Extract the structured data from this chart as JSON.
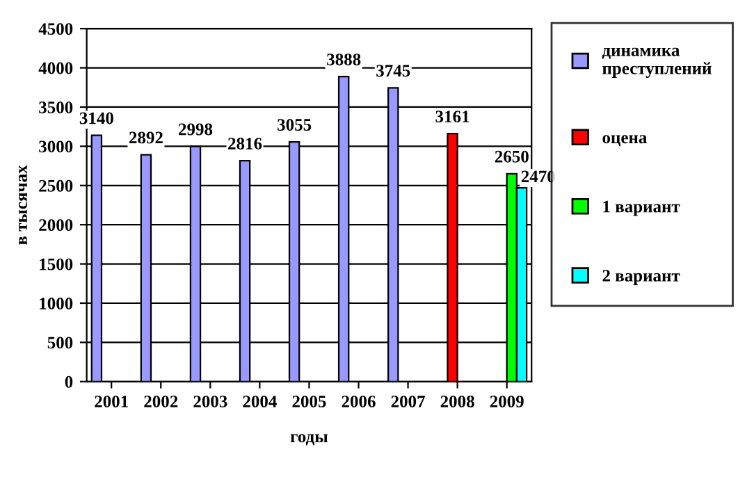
{
  "chart_data": {
    "type": "bar",
    "xlabel": "годы",
    "ylabel": "в тысячах",
    "categories": [
      "2001",
      "2002",
      "2003",
      "2004",
      "2005",
      "2006",
      "2007",
      "2008",
      "2009"
    ],
    "series": [
      {
        "name": "динамика преступлений",
        "color": "#9999ff",
        "values": [
          3140,
          2892,
          2998,
          2816,
          3055,
          3888,
          3745,
          null,
          null
        ]
      },
      {
        "name": "оцена",
        "color": "#ff0000",
        "values": [
          null,
          null,
          null,
          null,
          null,
          null,
          null,
          3161,
          null
        ]
      },
      {
        "name": "1 вариант",
        "color": "#00ff00",
        "values": [
          null,
          null,
          null,
          null,
          null,
          null,
          null,
          null,
          2650
        ]
      },
      {
        "name": "2 вариант",
        "color": "#00ffff",
        "values": [
          null,
          null,
          null,
          null,
          null,
          null,
          null,
          null,
          2470
        ]
      }
    ],
    "ylim": [
      0,
      4500
    ],
    "yticks": [
      0,
      500,
      1000,
      1500,
      2000,
      2500,
      3000,
      3500,
      4000,
      4500
    ],
    "grid": "y",
    "legend": "right",
    "data_labels": true
  }
}
